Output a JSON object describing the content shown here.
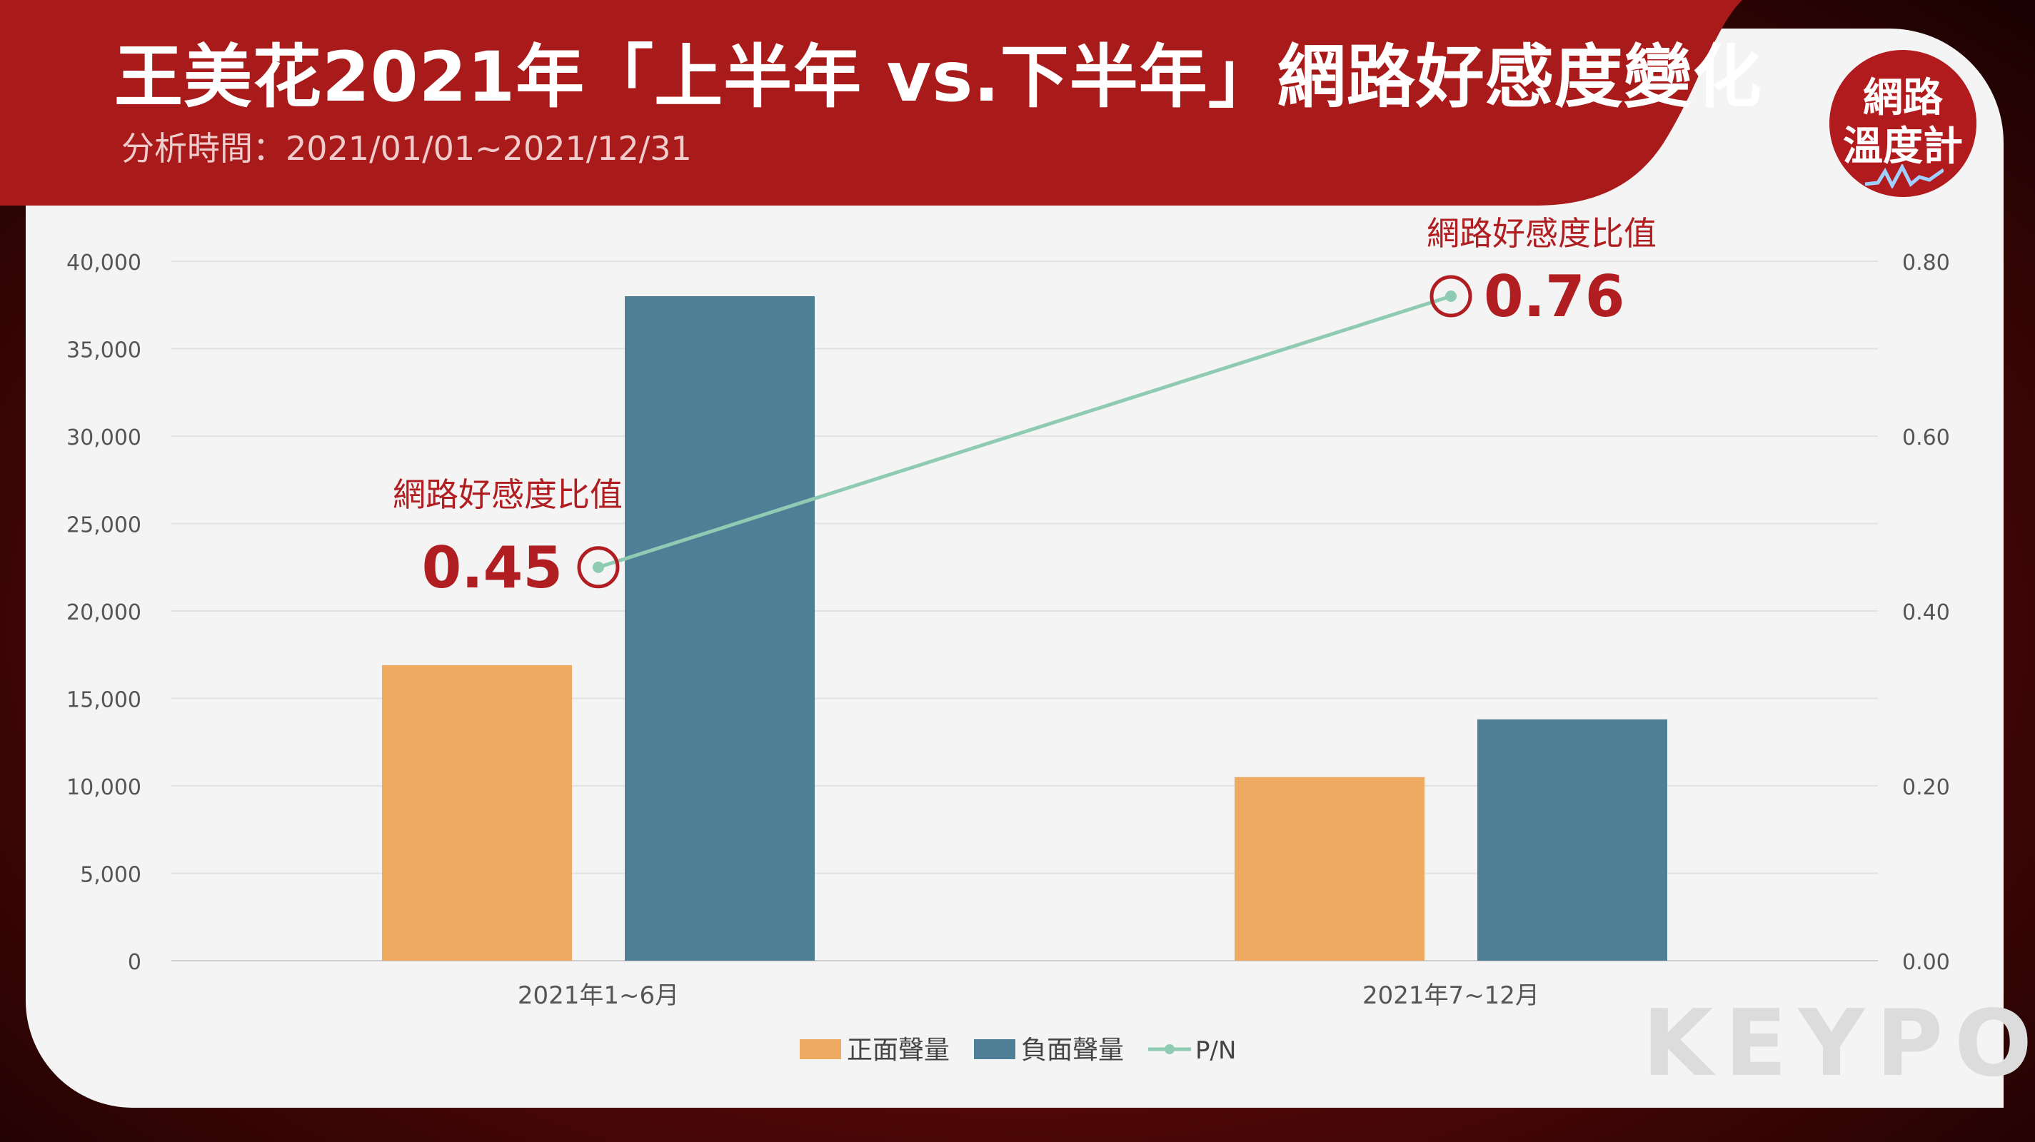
{
  "header": {
    "title": "王美花2021年「上半年 vs.下半年」網路好感度變化",
    "subtitle": "分析時間：2021/01/01~2021/12/31"
  },
  "badge": {
    "line1": "網路",
    "line2": "溫度計"
  },
  "watermark": "KEYPO",
  "colors": {
    "positive": "#EFAA62",
    "negative": "#4F7F96",
    "ratio": "#8FCBB3",
    "accent": "#B01E22"
  },
  "chart_data": {
    "type": "bar",
    "categories": [
      "2021年1~6月",
      "2021年7~12月"
    ],
    "series": [
      {
        "name": "正面聲量",
        "values": [
          16900,
          10500
        ],
        "axis": "left",
        "kind": "bar"
      },
      {
        "name": "負面聲量",
        "values": [
          38000,
          13800
        ],
        "axis": "left",
        "kind": "bar"
      },
      {
        "name": "P/N",
        "values": [
          0.45,
          0.76
        ],
        "axis": "right",
        "kind": "line"
      }
    ],
    "y_left": {
      "ylim": [
        0,
        40000
      ],
      "ticks": [
        "0",
        "5,000",
        "10,000",
        "15,000",
        "20,000",
        "25,000",
        "30,000",
        "35,000",
        "40,000"
      ]
    },
    "y_right": {
      "ylim": [
        0,
        0.8
      ],
      "ticks": [
        "0.00",
        "0.20",
        "0.40",
        "0.60",
        "0.80"
      ]
    },
    "annotations": [
      {
        "label": "網路好感度比值",
        "value": "0.45"
      },
      {
        "label": "網路好感度比值",
        "value": "0.76"
      }
    ],
    "legend": [
      "正面聲量",
      "負面聲量",
      "P/N"
    ],
    "legend_position": "bottom",
    "grid": true
  }
}
